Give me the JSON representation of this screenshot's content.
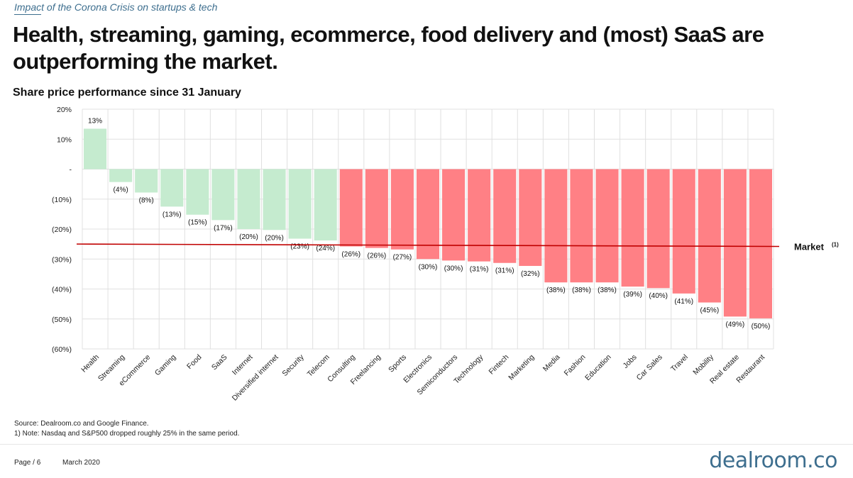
{
  "header": {
    "kicker": "Impact of the Corona Crisis on startups & tech",
    "headline": "Health, streaming, gaming, ecommerce, food delivery and (most) SaaS are outperforming the market."
  },
  "chart_data": {
    "type": "bar",
    "title": "Share price performance since 31 January",
    "ylim": [
      -60,
      20
    ],
    "yticks": [
      {
        "value": 20,
        "label": "20%"
      },
      {
        "value": 10,
        "label": "10%"
      },
      {
        "value": 0,
        "label": "-"
      },
      {
        "value": -10,
        "label": "(10%)"
      },
      {
        "value": -20,
        "label": "(20%)"
      },
      {
        "value": -30,
        "label": "(30%)"
      },
      {
        "value": -40,
        "label": "(40%)"
      },
      {
        "value": -50,
        "label": "(50%)"
      },
      {
        "value": -60,
        "label": "(60%)"
      }
    ],
    "grid": true,
    "categories": [
      "Health",
      "Streaming",
      "eCommerce",
      "Gaming",
      "Food",
      "SaaS",
      "Internet",
      "Diversified internet",
      "Security",
      "Telecom",
      "Consulting",
      "Freelancing",
      "Sports",
      "Electronics",
      "Semiconductors",
      "Technology",
      "Fintech",
      "Marketing",
      "Media",
      "Fashion",
      "Education",
      "Jobs",
      "Car Sales",
      "Travel",
      "Mobility",
      "Real estate",
      "Restaurant"
    ],
    "values": [
      13.5,
      -4.3,
      -7.8,
      -12.5,
      -15.2,
      -17,
      -20,
      -20.3,
      -23.2,
      -23.8,
      -25.8,
      -26.3,
      -26.8,
      -30,
      -30.5,
      -30.8,
      -31.3,
      -32.3,
      -37.8,
      -37.8,
      -37.8,
      -39.2,
      -39.7,
      -41.5,
      -44.5,
      -49.2,
      -49.8
    ],
    "labels": [
      "13%",
      "(4%)",
      "(8%)",
      "(13%)",
      "(15%)",
      "(17%)",
      "(20%)",
      "(20%)",
      "(23%)",
      "(24%)",
      "(26%)",
      "(26%)",
      "(27%)",
      "(30%)",
      "(30%)",
      "(31%)",
      "(31%)",
      "(32%)",
      "(38%)",
      "(38%)",
      "(38%)",
      "(39%)",
      "(40%)",
      "(41%)",
      "(45%)",
      "(49%)",
      "(50%)"
    ],
    "outperform_count": 10,
    "colors": {
      "outperform": "#c5ebcf",
      "underperform": "#ff8085",
      "market_line": "#c00000",
      "grid": "#e0e0e0"
    },
    "market_line": {
      "label": "Market",
      "superscript": "(1)",
      "y_start": -25,
      "y_end": -25.8
    }
  },
  "source": {
    "line1": "Source: Dealroom.co and Google Finance.",
    "line2": "1) Note: Nasdaq and S&P500 dropped roughly 25% in the same period."
  },
  "footer": {
    "page": "Page / 6",
    "date": "March 2020",
    "logo": "dealroom.co"
  }
}
